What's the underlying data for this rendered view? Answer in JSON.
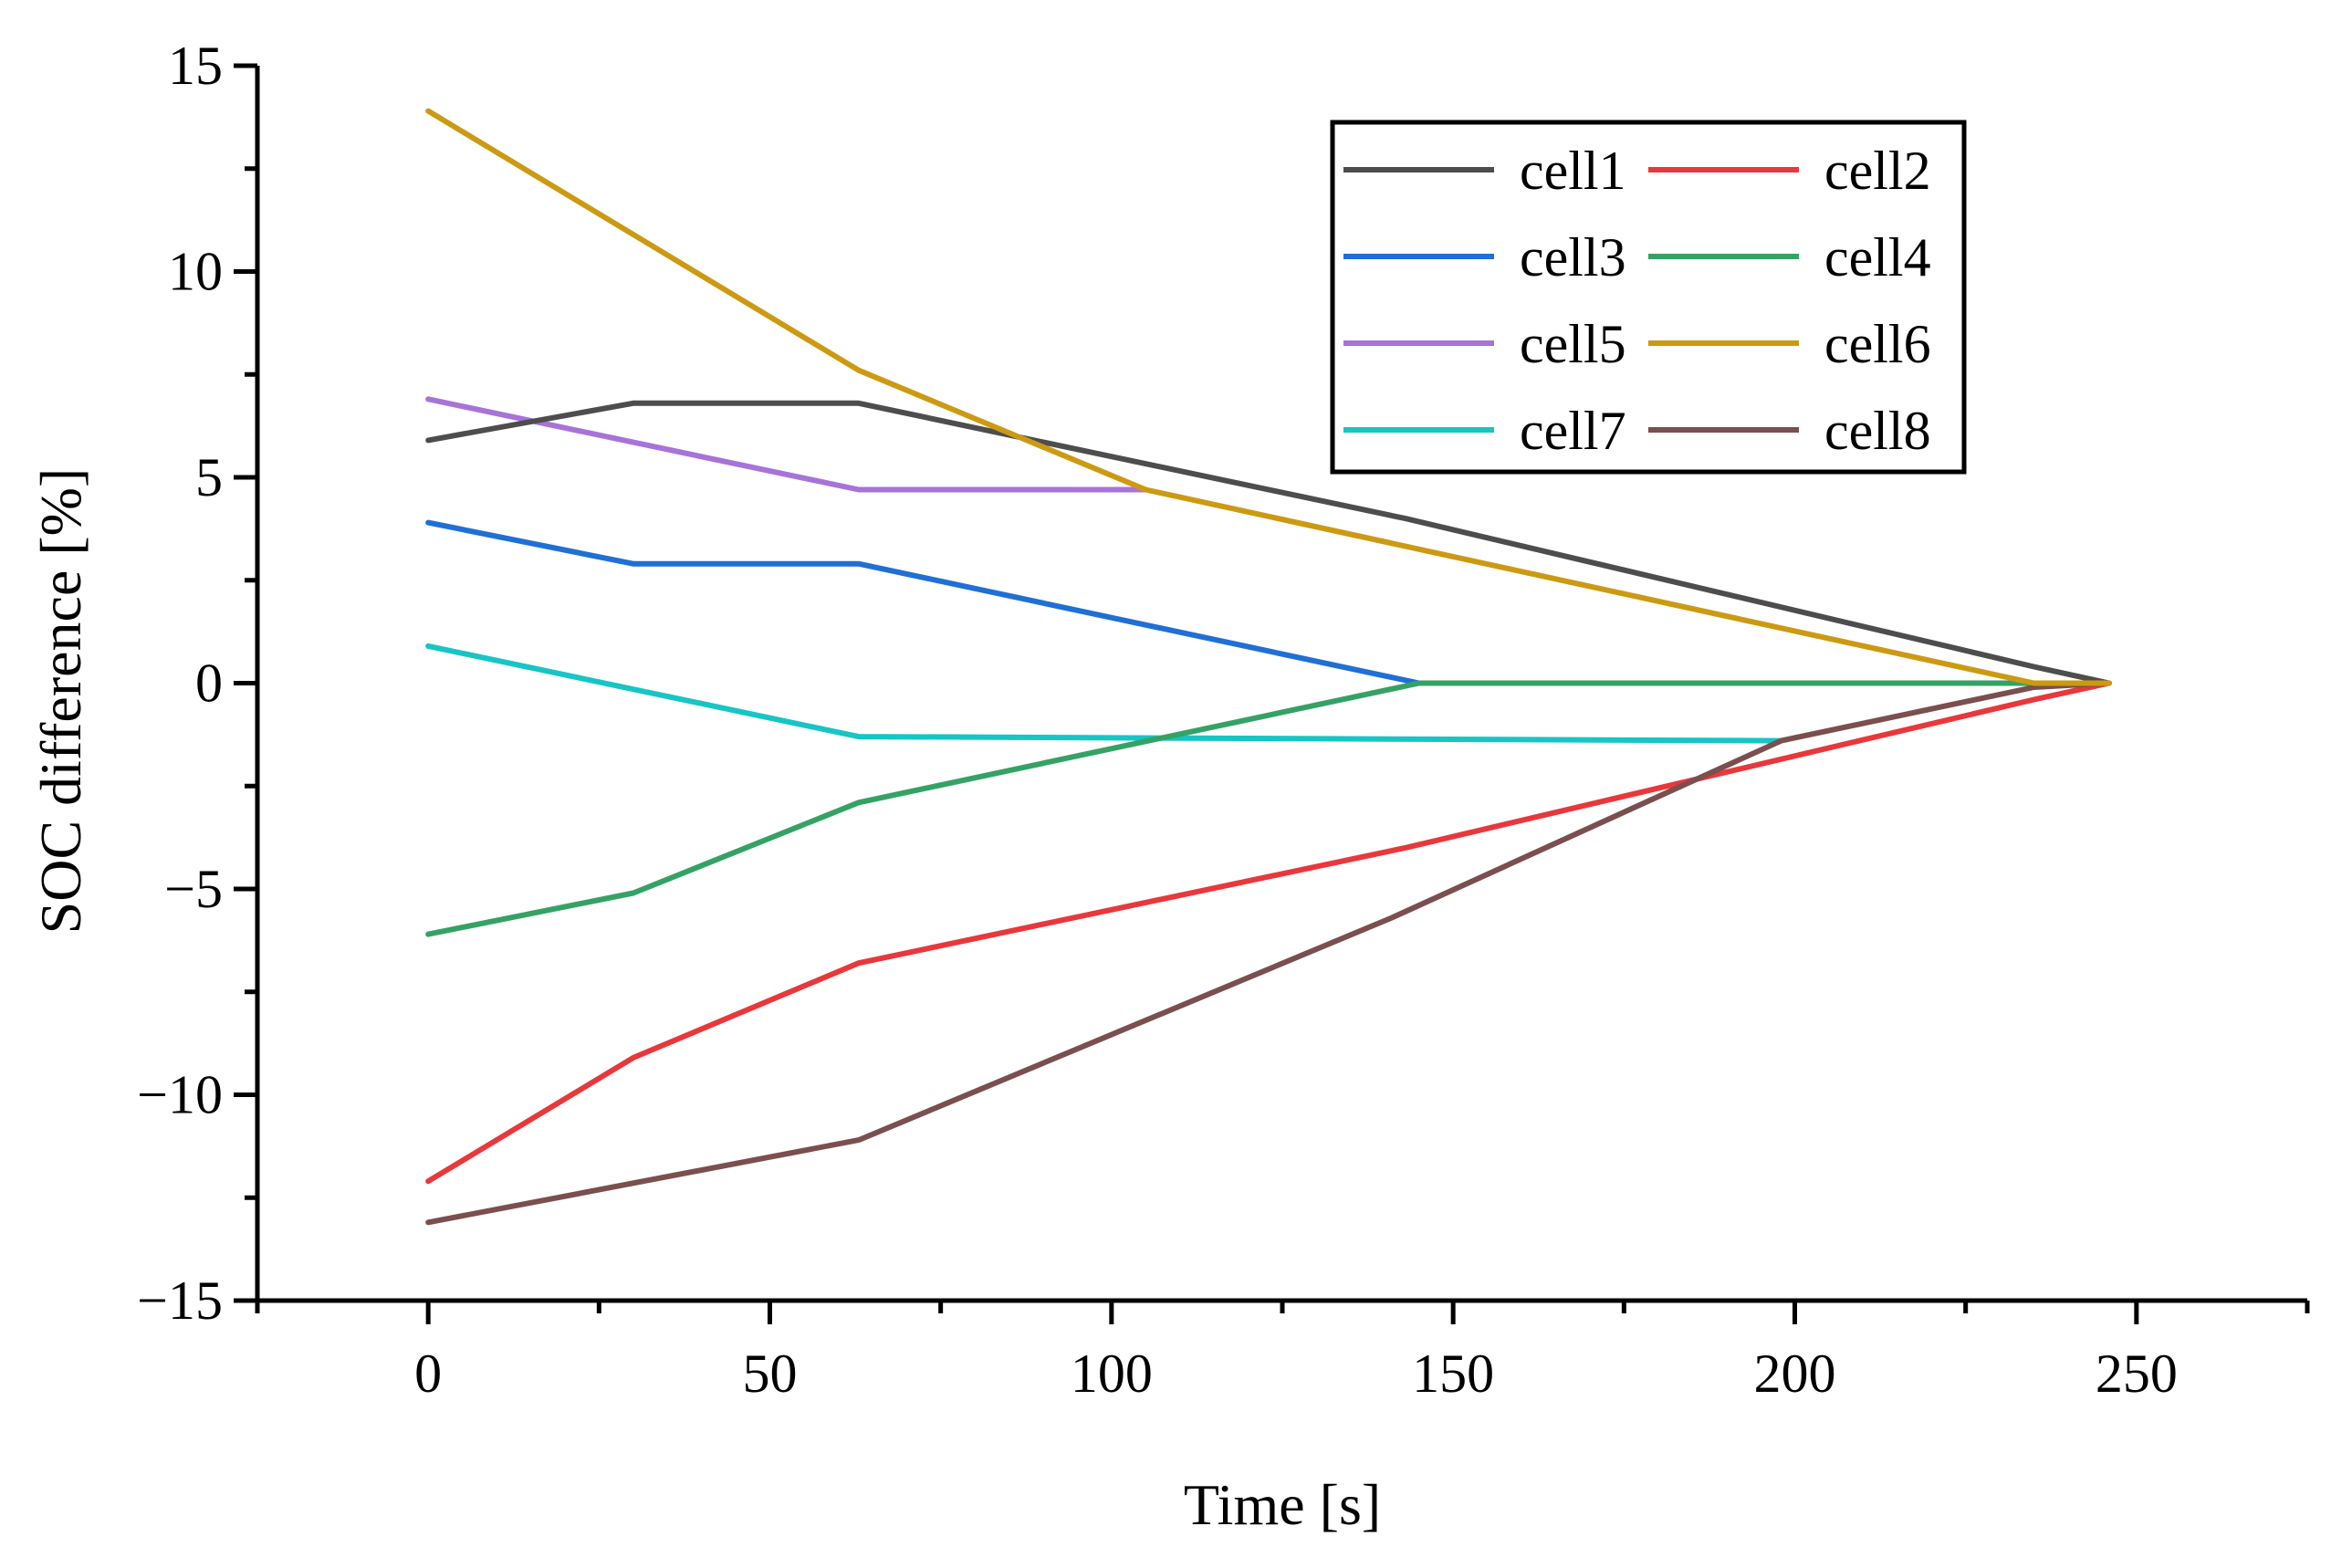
{
  "chart_data": {
    "type": "line",
    "title": "",
    "xlabel": "Time [s]",
    "ylabel": "SOC difference [%]",
    "xlim": [
      -25,
      275
    ],
    "ylim": [
      -15,
      15
    ],
    "xticks": [
      0,
      50,
      100,
      150,
      200,
      250
    ],
    "xtick_labels": [
      "0",
      "50",
      "100",
      "150",
      "200",
      "250"
    ],
    "yticks": [
      -15,
      -10,
      -5,
      0,
      5,
      10,
      15
    ],
    "ytick_labels": [
      "−15",
      "−10",
      "−5",
      "0",
      "5",
      "10",
      "15"
    ],
    "grid": false,
    "legend_position": "top-right",
    "series": [
      {
        "name": "cell1",
        "color": "#4d4d4d",
        "x": [
          0,
          30,
          63,
          143,
          235,
          246
        ],
        "y": [
          5.9,
          6.8,
          6.8,
          4.0,
          0.4,
          0.0
        ]
      },
      {
        "name": "cell2",
        "color": "#e8383b",
        "x": [
          0,
          30,
          63,
          143,
          235,
          246
        ],
        "y": [
          -12.1,
          -9.1,
          -6.8,
          -4.0,
          -0.4,
          0.0
        ]
      },
      {
        "name": "cell3",
        "color": "#1f6fd6",
        "x": [
          0,
          30,
          63,
          145,
          246
        ],
        "y": [
          3.9,
          2.9,
          2.9,
          0.0,
          0.0
        ]
      },
      {
        "name": "cell4",
        "color": "#35a265",
        "x": [
          0,
          30,
          63,
          145,
          246
        ],
        "y": [
          -6.1,
          -5.1,
          -2.9,
          0.0,
          0.0
        ]
      },
      {
        "name": "cell5",
        "color": "#a873d8",
        "x": [
          0,
          63,
          105
        ],
        "y": [
          6.9,
          4.7,
          4.7
        ]
      },
      {
        "name": "cell6",
        "color": "#cc9a12",
        "x": [
          0,
          63,
          105,
          235,
          246
        ],
        "y": [
          13.9,
          7.6,
          4.7,
          0.0,
          0.0
        ]
      },
      {
        "name": "cell7",
        "color": "#17c5c4",
        "x": [
          0,
          63,
          198
        ],
        "y": [
          0.9,
          -1.3,
          -1.4
        ]
      },
      {
        "name": "cell8",
        "color": "#7a4f4e",
        "x": [
          0,
          63,
          141,
          198,
          235,
          246
        ],
        "y": [
          -13.1,
          -11.1,
          -5.7,
          -1.4,
          -0.1,
          0.0
        ]
      }
    ]
  }
}
